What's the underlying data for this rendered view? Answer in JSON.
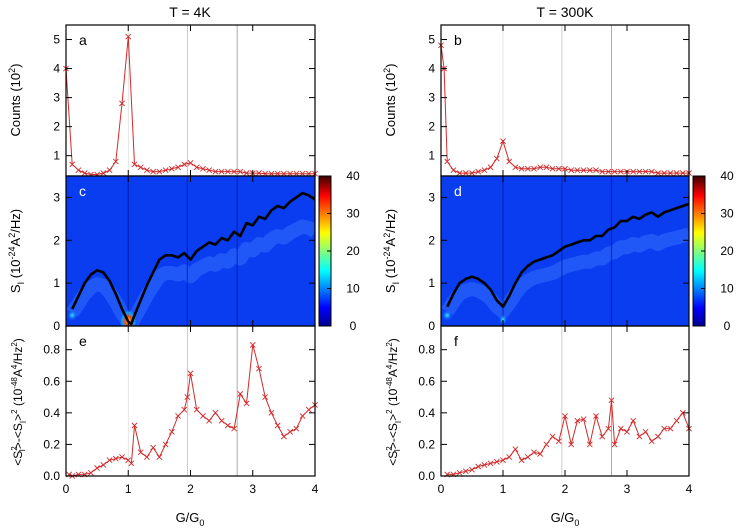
{
  "figure": {
    "titles": [
      "T = 4K",
      "T = 300K"
    ]
  },
  "axes": {
    "xlabel": "G/G",
    "xlabel_sub": "0",
    "xticks": [
      "0",
      "1",
      "2",
      "3",
      "4"
    ],
    "counts_ylabel": {
      "main": "Counts (10",
      "sup": "2",
      "end": ")"
    },
    "counts_yticks": [
      "1",
      "2",
      "3",
      "4",
      "5"
    ],
    "noise_ylabel": {
      "s": "S",
      "sub": "I",
      "mid": " (10",
      "exp": "-24",
      "mid2": "A",
      "sup2": "2",
      "end": "/Hz)"
    },
    "noise_yticks": [
      "0",
      "1",
      "2",
      "3"
    ],
    "var_ylabel": "<S²I>-<SI>² (10⁻⁴⁸A⁴/Hz²)",
    "var_ylabel_parts": {
      "lt": "<S",
      "sup1": "2",
      "sub1": "I",
      "mid": ">-<S",
      "sub2": "I",
      "gt": ">",
      "sup3": "2",
      "open": " (10",
      "exp": "-48",
      "a": "A",
      "sup4": "4",
      "hz": "/Hz",
      "sup5": "2",
      "close": ")"
    },
    "var_yticks": [
      "0.0",
      "0.2",
      "0.4",
      "0.6",
      "0.8"
    ],
    "colorbar_ticks": [
      "0",
      "10",
      "20",
      "30",
      "40"
    ],
    "colorbar_range": [
      0,
      40
    ]
  },
  "chart_data": [
    {
      "panel": "a",
      "type": "line",
      "title": "T = 4K",
      "ylabel": "Counts (10^2)",
      "xlabel": "G/G0",
      "xlim": [
        0,
        4
      ],
      "ylim": [
        0.3,
        5.5
      ],
      "vlines": [
        1,
        1.95,
        2.75
      ],
      "x": [
        0,
        0.1,
        0.2,
        0.3,
        0.4,
        0.5,
        0.6,
        0.7,
        0.8,
        0.9,
        1.0,
        1.1,
        1.2,
        1.3,
        1.4,
        1.5,
        1.6,
        1.7,
        1.8,
        1.9,
        2.0,
        2.1,
        2.2,
        2.3,
        2.4,
        2.5,
        2.6,
        2.7,
        2.8,
        2.9,
        3.0,
        3.1,
        3.2,
        3.3,
        3.4,
        3.5,
        3.6,
        3.7,
        3.8,
        3.9,
        4.0
      ],
      "y": [
        4.0,
        0.7,
        0.5,
        0.4,
        0.35,
        0.35,
        0.4,
        0.5,
        0.8,
        2.8,
        5.1,
        0.7,
        0.6,
        0.5,
        0.45,
        0.45,
        0.5,
        0.55,
        0.6,
        0.7,
        0.75,
        0.6,
        0.55,
        0.5,
        0.45,
        0.45,
        0.45,
        0.45,
        0.45,
        0.4,
        0.4,
        0.4,
        0.38,
        0.38,
        0.38,
        0.38,
        0.38,
        0.38,
        0.38,
        0.38,
        0.38
      ]
    },
    {
      "panel": "b",
      "type": "line",
      "title": "T = 300K",
      "ylabel": "Counts (10^2)",
      "xlabel": "G/G0",
      "xlim": [
        0,
        4
      ],
      "ylim": [
        0.3,
        5.5
      ],
      "vlines": [
        1,
        1.95,
        2.75
      ],
      "x": [
        0,
        0.05,
        0.1,
        0.2,
        0.3,
        0.4,
        0.5,
        0.6,
        0.7,
        0.8,
        0.9,
        1.0,
        1.1,
        1.2,
        1.3,
        1.4,
        1.5,
        1.6,
        1.7,
        1.8,
        1.9,
        2.0,
        2.1,
        2.2,
        2.3,
        2.4,
        2.5,
        2.6,
        2.7,
        2.8,
        2.9,
        3.0,
        3.1,
        3.2,
        3.3,
        3.4,
        3.5,
        3.6,
        3.7,
        3.8,
        3.9,
        4.0
      ],
      "y": [
        4.8,
        4.0,
        0.8,
        0.5,
        0.4,
        0.4,
        0.4,
        0.45,
        0.5,
        0.6,
        0.9,
        1.5,
        0.8,
        0.6,
        0.55,
        0.55,
        0.55,
        0.6,
        0.6,
        0.55,
        0.55,
        0.55,
        0.5,
        0.5,
        0.5,
        0.5,
        0.5,
        0.45,
        0.45,
        0.45,
        0.45,
        0.45,
        0.45,
        0.45,
        0.45,
        0.45,
        0.4,
        0.4,
        0.4,
        0.4,
        0.4,
        0.4
      ]
    },
    {
      "panel": "c",
      "type": "heatmap",
      "overlay": "line",
      "ylabel": "S_I (10^-24 A^2/Hz)",
      "xlim": [
        0,
        4
      ],
      "ylim": [
        0,
        3.5
      ],
      "zlim": [
        0,
        40
      ],
      "x": [
        0.1,
        0.2,
        0.3,
        0.4,
        0.5,
        0.6,
        0.7,
        0.8,
        0.9,
        1.0,
        1.05,
        1.1,
        1.2,
        1.3,
        1.4,
        1.5,
        1.6,
        1.7,
        1.8,
        1.9,
        2.0,
        2.1,
        2.2,
        2.3,
        2.4,
        2.5,
        2.6,
        2.7,
        2.8,
        2.9,
        3.0,
        3.1,
        3.2,
        3.3,
        3.4,
        3.5,
        3.6,
        3.7,
        3.8,
        3.9,
        4.0
      ],
      "y": [
        0.4,
        0.7,
        1.0,
        1.2,
        1.3,
        1.25,
        1.05,
        0.75,
        0.4,
        0.1,
        0.05,
        0.25,
        0.6,
        0.95,
        1.25,
        1.55,
        1.65,
        1.65,
        1.6,
        1.7,
        1.55,
        1.75,
        1.85,
        1.95,
        1.9,
        2.05,
        2.0,
        2.2,
        2.1,
        2.4,
        2.35,
        2.55,
        2.5,
        2.7,
        2.8,
        2.75,
        2.9,
        3.0,
        3.1,
        3.05,
        2.95
      ]
    },
    {
      "panel": "d",
      "type": "heatmap",
      "overlay": "line",
      "ylabel": "S_I (10^-24 A^2/Hz)",
      "xlim": [
        0,
        4
      ],
      "ylim": [
        0,
        3.5
      ],
      "zlim": [
        0,
        40
      ],
      "x": [
        0.1,
        0.2,
        0.3,
        0.4,
        0.5,
        0.6,
        0.7,
        0.8,
        0.9,
        1.0,
        1.1,
        1.2,
        1.3,
        1.4,
        1.5,
        1.6,
        1.7,
        1.8,
        1.9,
        2.0,
        2.1,
        2.2,
        2.3,
        2.4,
        2.5,
        2.6,
        2.7,
        2.8,
        2.9,
        3.0,
        3.1,
        3.2,
        3.3,
        3.4,
        3.5,
        3.6,
        3.7,
        3.8,
        3.9,
        4.0
      ],
      "y": [
        0.45,
        0.75,
        1.0,
        1.1,
        1.15,
        1.1,
        1.0,
        0.85,
        0.6,
        0.45,
        0.7,
        1.0,
        1.25,
        1.4,
        1.5,
        1.55,
        1.6,
        1.65,
        1.75,
        1.85,
        1.9,
        1.95,
        2.0,
        2.0,
        2.1,
        2.1,
        2.25,
        2.3,
        2.45,
        2.45,
        2.55,
        2.5,
        2.6,
        2.65,
        2.55,
        2.65,
        2.7,
        2.75,
        2.8,
        2.85
      ]
    },
    {
      "panel": "e",
      "type": "line",
      "xlabel": "G/G0",
      "ylabel": "<S_I^2>-<S_I>^2 (10^-48 A^4/Hz^2)",
      "xlim": [
        0,
        4
      ],
      "ylim": [
        0,
        0.95
      ],
      "vlines": [
        1,
        1.95,
        2.75
      ],
      "x": [
        0.05,
        0.1,
        0.2,
        0.3,
        0.4,
        0.5,
        0.6,
        0.7,
        0.8,
        0.9,
        1.0,
        1.05,
        1.1,
        1.2,
        1.3,
        1.4,
        1.5,
        1.6,
        1.7,
        1.8,
        1.9,
        1.95,
        2.0,
        2.1,
        2.2,
        2.3,
        2.4,
        2.5,
        2.6,
        2.7,
        2.8,
        2.9,
        3.0,
        3.1,
        3.2,
        3.3,
        3.4,
        3.5,
        3.6,
        3.7,
        3.8,
        3.9,
        4.0
      ],
      "y": [
        0.01,
        0.0,
        0.01,
        0.01,
        0.02,
        0.05,
        0.07,
        0.1,
        0.11,
        0.12,
        0.1,
        0.08,
        0.32,
        0.15,
        0.12,
        0.18,
        0.12,
        0.2,
        0.28,
        0.38,
        0.42,
        0.5,
        0.65,
        0.42,
        0.38,
        0.35,
        0.4,
        0.35,
        0.32,
        0.3,
        0.52,
        0.46,
        0.83,
        0.68,
        0.5,
        0.4,
        0.32,
        0.25,
        0.28,
        0.3,
        0.38,
        0.42,
        0.45
      ]
    },
    {
      "panel": "f",
      "type": "line",
      "xlabel": "G/G0",
      "ylabel": "<S_I^2>-<S_I>^2 (10^-48 A^4/Hz^2)",
      "xlim": [
        0,
        4
      ],
      "ylim": [
        0,
        0.95
      ],
      "vlines": [
        1,
        1.95,
        2.75
      ],
      "x": [
        0.1,
        0.2,
        0.3,
        0.4,
        0.5,
        0.6,
        0.7,
        0.8,
        0.9,
        1.0,
        1.1,
        1.2,
        1.3,
        1.4,
        1.5,
        1.6,
        1.7,
        1.8,
        1.9,
        2.0,
        2.1,
        2.2,
        2.3,
        2.4,
        2.5,
        2.6,
        2.7,
        2.75,
        2.8,
        2.9,
        3.0,
        3.1,
        3.2,
        3.3,
        3.4,
        3.5,
        3.6,
        3.7,
        3.8,
        3.9,
        4.0
      ],
      "y": [
        0.01,
        0.01,
        0.02,
        0.03,
        0.04,
        0.06,
        0.07,
        0.08,
        0.09,
        0.1,
        0.12,
        0.17,
        0.1,
        0.12,
        0.15,
        0.14,
        0.2,
        0.25,
        0.22,
        0.38,
        0.2,
        0.35,
        0.36,
        0.2,
        0.38,
        0.25,
        0.3,
        0.48,
        0.2,
        0.3,
        0.28,
        0.35,
        0.25,
        0.28,
        0.22,
        0.25,
        0.3,
        0.3,
        0.35,
        0.4,
        0.3
      ]
    }
  ]
}
